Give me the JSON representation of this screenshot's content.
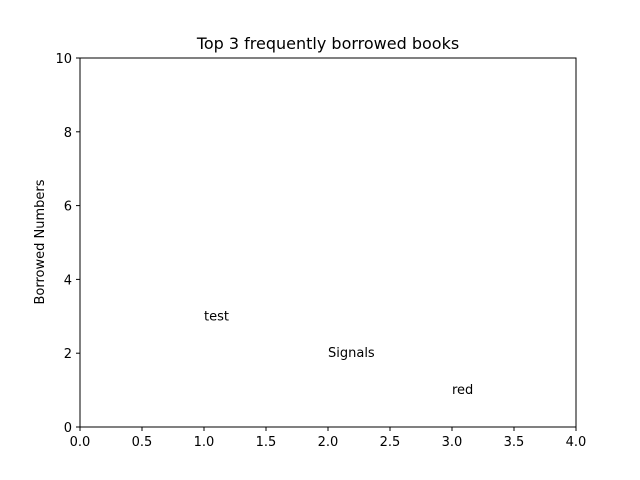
{
  "chart_data": {
    "type": "scatter",
    "title": "Top 3 frequently borrowed books",
    "xlabel": "",
    "ylabel": "Borrowed Numbers",
    "xlim": [
      0,
      4
    ],
    "ylim": [
      0,
      10
    ],
    "xticks": [
      "0.0",
      "0.5",
      "1.0",
      "1.5",
      "2.0",
      "2.5",
      "3.0",
      "3.5",
      "4.0"
    ],
    "yticks": [
      "0",
      "2",
      "4",
      "6",
      "8",
      "10"
    ],
    "grid": false,
    "points": [
      {
        "label": "test",
        "x": 1,
        "y": 3
      },
      {
        "label": "Signals",
        "x": 2,
        "y": 2
      },
      {
        "label": "red",
        "x": 3,
        "y": 1
      }
    ]
  }
}
